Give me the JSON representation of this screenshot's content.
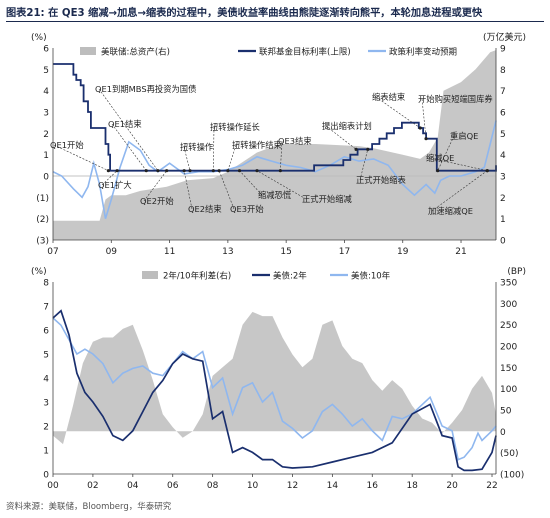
{
  "figure": {
    "title": "图表21:  在 QE3 缩减→加息→缩表的过程中，美债收益率曲线由熊陡逐渐转向熊平，本轮加息进程或更快",
    "source": "资料来源：美联储，Bloomberg，华泰研究"
  },
  "colors": {
    "grey_area": "#bdbdbd",
    "navy": "#1a2f6e",
    "light_blue": "#8fb7ef",
    "title": "#1b2a4e"
  },
  "chart_data": [
    {
      "type": "line",
      "left_unit": "(%)",
      "right_unit": "(万亿美元)",
      "yleft_ticks": [
        "6",
        "5",
        "4",
        "3",
        "2",
        "1",
        "0",
        "(1)",
        "(2)",
        "(3)"
      ],
      "yleft_range": [
        -3,
        6
      ],
      "yright_ticks": [
        "9",
        "8",
        "7",
        "6",
        "5",
        "4",
        "3",
        "2",
        "1",
        "0"
      ],
      "yright_range": [
        0,
        9
      ],
      "x_ticks": [
        "07",
        "09",
        "11",
        "13",
        "15",
        "17",
        "19",
        "21"
      ],
      "x_range": [
        2007.0,
        2022.2
      ],
      "series": [
        {
          "name": "美联储:总资产(右)",
          "kind": "area",
          "axis": "right",
          "x": [
            2007.0,
            2008.6,
            2008.8,
            2009.0,
            2009.5,
            2010.0,
            2010.9,
            2011.6,
            2012.5,
            2013.0,
            2014.0,
            2014.8,
            2016.0,
            2017.5,
            2018.0,
            2019.0,
            2019.6,
            2019.9,
            2020.2,
            2020.4,
            2021.0,
            2021.5,
            2022.0,
            2022.2
          ],
          "values": [
            0.9,
            0.9,
            1.9,
            2.1,
            2.1,
            2.3,
            2.5,
            2.8,
            2.9,
            3.2,
            4.1,
            4.5,
            4.5,
            4.4,
            4.3,
            4.0,
            3.8,
            4.1,
            4.8,
            7.0,
            7.4,
            8.0,
            8.8,
            8.9
          ]
        },
        {
          "name": "联邦基金目标利率(上限)",
          "kind": "step",
          "axis": "left",
          "x": [
            2007.0,
            2007.7,
            2007.8,
            2007.95,
            2008.05,
            2008.2,
            2008.3,
            2008.8,
            2008.9,
            2008.96,
            2015.96,
            2016.96,
            2017.2,
            2017.45,
            2017.95,
            2018.2,
            2018.45,
            2018.7,
            2018.97,
            2019.55,
            2019.7,
            2019.8,
            2020.17,
            2022.2
          ],
          "values": [
            5.25,
            4.75,
            4.5,
            4.25,
            3.5,
            3.0,
            2.25,
            1.5,
            1.0,
            0.25,
            0.5,
            0.75,
            1.0,
            1.25,
            1.5,
            1.75,
            2.0,
            2.25,
            2.5,
            2.25,
            2.0,
            1.75,
            0.25,
            0.5
          ]
        },
        {
          "name": "政策利率变动预期",
          "kind": "line",
          "axis": "left",
          "x": [
            2007.0,
            2007.3,
            2007.7,
            2008.0,
            2008.2,
            2008.4,
            2008.6,
            2008.8,
            2009.0,
            2009.3,
            2009.6,
            2010.0,
            2010.3,
            2010.6,
            2011.0,
            2011.5,
            2012.0,
            2012.5,
            2013.0,
            2013.5,
            2014.0,
            2014.5,
            2015.0,
            2015.5,
            2016.0,
            2016.5,
            2017.0,
            2017.5,
            2018.0,
            2018.5,
            2019.0,
            2019.4,
            2019.8,
            2020.1,
            2020.3,
            2020.6,
            2021.0,
            2021.5,
            2021.8,
            2022.0,
            2022.2
          ],
          "values": [
            0.2,
            0.0,
            -0.6,
            -1.0,
            -0.5,
            0.6,
            -0.4,
            -2.0,
            -1.1,
            0.4,
            1.6,
            1.2,
            0.5,
            0.2,
            0.6,
            0.1,
            0.2,
            0.2,
            0.3,
            0.5,
            0.9,
            0.7,
            0.5,
            0.4,
            0.2,
            0.5,
            0.9,
            0.7,
            0.8,
            0.5,
            -0.4,
            -0.9,
            -0.4,
            -0.8,
            -0.2,
            0.0,
            0.0,
            0.2,
            0.4,
            1.5,
            2.6
          ]
        }
      ],
      "annotations": [
        {
          "text": "QE1到期MBS再投资为国债"
        },
        {
          "text": "QE1结束"
        },
        {
          "text": "QE1开始"
        },
        {
          "text": "QE1扩大"
        },
        {
          "text": "扭转操作"
        },
        {
          "text": "扭转操作延长"
        },
        {
          "text": "扭转操作结束"
        },
        {
          "text": "QE3结束"
        },
        {
          "text": "提出缩表计划"
        },
        {
          "text": "缩表结束"
        },
        {
          "text": "开始购买短端国库券"
        },
        {
          "text": "重启QE"
        },
        {
          "text": "缩减QE"
        },
        {
          "text": "QE2开始"
        },
        {
          "text": "QE2结束"
        },
        {
          "text": "QE3开始"
        },
        {
          "text": "缩减恐慌"
        },
        {
          "text": "正式开始缩减"
        },
        {
          "text": "正式开始缩表"
        },
        {
          "text": "加速缩减QE"
        }
      ]
    },
    {
      "type": "line",
      "left_unit": "(%)",
      "right_unit": "(BP)",
      "yleft_ticks": [
        "8",
        "7",
        "6",
        "5",
        "4",
        "3",
        "2",
        "1",
        "0"
      ],
      "yleft_range": [
        0,
        8
      ],
      "yright_ticks": [
        "350",
        "300",
        "250",
        "200",
        "150",
        "100",
        "50",
        "0",
        "(50)",
        "(100)"
      ],
      "yright_range": [
        -100,
        350
      ],
      "x_ticks": [
        "00",
        "02",
        "04",
        "06",
        "08",
        "10",
        "12",
        "14",
        "16",
        "18",
        "20",
        "22"
      ],
      "x_range": [
        2000.0,
        2022.2
      ],
      "series": [
        {
          "name": "2年/10年利差(右)",
          "kind": "area",
          "axis": "right",
          "x": [
            2000.0,
            2000.5,
            2001.0,
            2001.5,
            2002.0,
            2002.5,
            2003.0,
            2003.5,
            2004.0,
            2004.5,
            2005.0,
            2005.5,
            2006.0,
            2006.5,
            2007.0,
            2007.5,
            2008.0,
            2008.5,
            2009.0,
            2009.5,
            2010.0,
            2010.5,
            2011.0,
            2011.5,
            2012.0,
            2012.5,
            2013.0,
            2013.5,
            2014.0,
            2014.5,
            2015.0,
            2015.5,
            2016.0,
            2016.5,
            2017.0,
            2017.5,
            2018.0,
            2018.5,
            2019.0,
            2019.5,
            2020.0,
            2020.5,
            2021.0,
            2021.5,
            2022.0,
            2022.2
          ],
          "values": [
            -10,
            -30,
            60,
            160,
            210,
            220,
            220,
            240,
            250,
            190,
            120,
            40,
            10,
            -15,
            0,
            40,
            130,
            150,
            170,
            250,
            280,
            270,
            270,
            220,
            180,
            150,
            170,
            250,
            260,
            200,
            170,
            160,
            120,
            95,
            120,
            100,
            60,
            30,
            20,
            -5,
            20,
            50,
            100,
            130,
            90,
            40
          ]
        },
        {
          "name": "美债:2年",
          "kind": "line",
          "axis": "left",
          "x": [
            2000.0,
            2000.4,
            2000.8,
            2001.2,
            2001.6,
            2002.0,
            2002.5,
            2003.0,
            2003.5,
            2004.0,
            2004.5,
            2005.0,
            2005.5,
            2006.0,
            2006.5,
            2007.0,
            2007.5,
            2008.0,
            2008.5,
            2009.0,
            2009.5,
            2010.0,
            2010.5,
            2011.0,
            2011.5,
            2012.0,
            2013.0,
            2014.0,
            2015.0,
            2016.0,
            2017.0,
            2018.0,
            2018.9,
            2019.5,
            2020.0,
            2020.3,
            2020.6,
            2021.0,
            2021.5,
            2022.0,
            2022.2
          ],
          "values": [
            6.5,
            6.8,
            5.8,
            4.2,
            3.4,
            3.0,
            2.4,
            1.6,
            1.4,
            1.8,
            2.6,
            3.4,
            3.9,
            4.6,
            5.0,
            4.8,
            4.7,
            2.3,
            2.6,
            0.9,
            1.1,
            0.9,
            0.6,
            0.6,
            0.3,
            0.25,
            0.3,
            0.5,
            0.7,
            0.9,
            1.3,
            2.5,
            2.9,
            1.6,
            1.5,
            0.3,
            0.15,
            0.15,
            0.2,
            0.9,
            1.6
          ]
        },
        {
          "name": "美债:10年",
          "kind": "line",
          "axis": "left",
          "x": [
            2000.0,
            2000.4,
            2000.8,
            2001.2,
            2001.6,
            2002.0,
            2002.5,
            2003.0,
            2003.5,
            2004.0,
            2004.5,
            2005.0,
            2005.5,
            2006.0,
            2006.5,
            2007.0,
            2007.5,
            2008.0,
            2008.5,
            2009.0,
            2009.5,
            2010.0,
            2010.5,
            2011.0,
            2011.5,
            2012.0,
            2012.5,
            2013.0,
            2013.5,
            2014.0,
            2014.5,
            2015.0,
            2015.5,
            2016.0,
            2016.5,
            2017.0,
            2017.5,
            2018.0,
            2018.9,
            2019.5,
            2020.0,
            2020.3,
            2020.6,
            2021.0,
            2021.3,
            2021.5,
            2022.0,
            2022.2
          ],
          "values": [
            6.5,
            6.2,
            5.6,
            5.0,
            5.2,
            5.0,
            4.6,
            3.8,
            4.2,
            4.4,
            4.5,
            4.2,
            4.1,
            4.6,
            5.1,
            4.8,
            5.1,
            3.6,
            4.0,
            2.5,
            3.6,
            3.8,
            3.0,
            3.4,
            2.2,
            1.9,
            1.5,
            1.8,
            2.6,
            2.9,
            2.5,
            2.0,
            2.3,
            1.8,
            1.4,
            2.4,
            2.3,
            2.5,
            3.2,
            2.0,
            1.8,
            0.6,
            0.7,
            1.1,
            1.7,
            1.4,
            1.8,
            2.0
          ]
        }
      ]
    }
  ]
}
